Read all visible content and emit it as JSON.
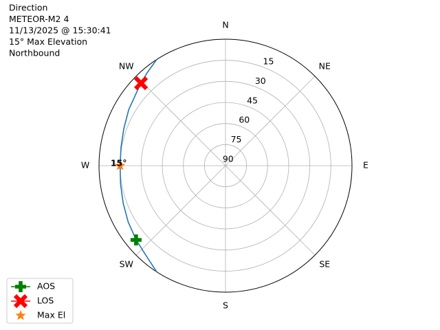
{
  "chart_data": {
    "type": "polar",
    "title_lines": [
      "Direction",
      "METEOR-M2 4",
      "11/13/2025 @ 15:30:41",
      "15° Max Elevation",
      "Northbound"
    ],
    "theta_direction": "clockwise",
    "theta_zero": "N",
    "thetaticks": [
      {
        "value": 0,
        "label": "N"
      },
      {
        "value": 45,
        "label": "NE"
      },
      {
        "value": 90,
        "label": "E"
      },
      {
        "value": 135,
        "label": "SE"
      },
      {
        "value": 180,
        "label": "S"
      },
      {
        "value": 225,
        "label": "SW"
      },
      {
        "value": 270,
        "label": "W"
      },
      {
        "value": 315,
        "label": "NW"
      }
    ],
    "rlim": [
      90,
      0
    ],
    "rticks": [
      15,
      30,
      45,
      60,
      75,
      90
    ],
    "grid": true,
    "legend": "lower left",
    "series": [
      {
        "color": "#1f77b4",
        "marker": "line",
        "theta": [
          213,
          220,
          230,
          240,
          250,
          260,
          270,
          280,
          290,
          300,
          314,
          320,
          327
        ],
        "r": [
          0,
          4,
          7.3,
          10,
          12.5,
          14.2,
          15,
          14.5,
          13,
          10.5,
          6,
          3.5,
          0
        ]
      },
      {
        "name": "AOS",
        "color": "#008000",
        "marker": "plus",
        "theta": [
          230.3
        ],
        "r": [
          7.3
        ]
      },
      {
        "name": "LOS",
        "color": "#ff0000",
        "marker": "x",
        "theta": [
          314.3
        ],
        "r": [
          6
        ]
      },
      {
        "name": "Max El",
        "color": "#ff7f0e",
        "marker": "star",
        "theta": [
          270
        ],
        "r": [
          15
        ],
        "value_labels": [
          "15°"
        ]
      }
    ]
  }
}
